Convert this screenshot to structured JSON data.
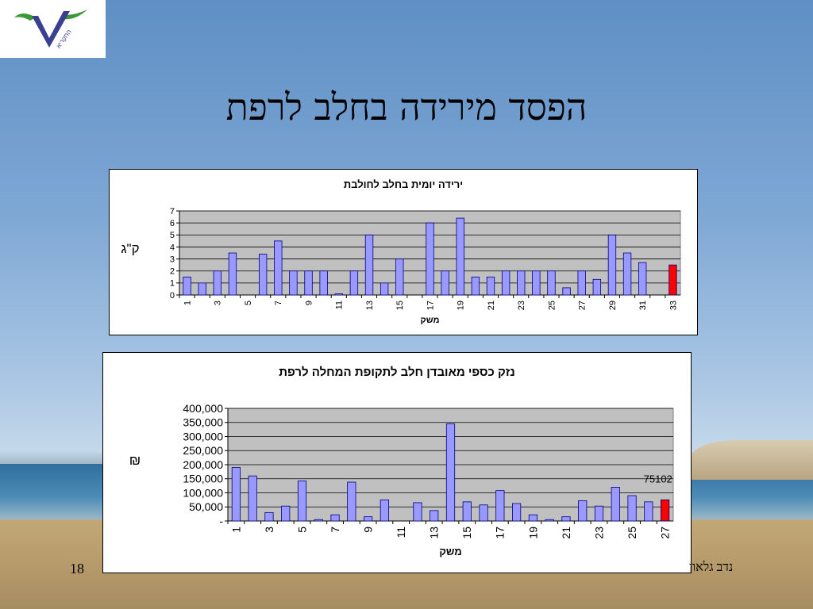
{
  "slide": {
    "title": "הפסד מירידה בחלב לרפת",
    "page_number": "18",
    "author": "נדב גלאון"
  },
  "logo": {
    "caption": "התקריא"
  },
  "colors": {
    "bar": "#9999ff",
    "highlight": "#ff0000",
    "plot_bg": "#c0c0c0"
  },
  "chart_data": [
    {
      "type": "bar",
      "title": "ירידה יומית בחלב לחולבת",
      "xlabel": "משק",
      "ylabel": "ק\"ג",
      "ylim": [
        0,
        7
      ],
      "yticks": [
        "0",
        "1",
        "2",
        "3",
        "4",
        "5",
        "6",
        "7"
      ],
      "categories": [
        "1",
        "2",
        "3",
        "4",
        "5",
        "6",
        "7",
        "8",
        "9",
        "10",
        "11",
        "12",
        "13",
        "14",
        "15",
        "16",
        "17",
        "18",
        "19",
        "20",
        "21",
        "22",
        "23",
        "24",
        "25",
        "26",
        "27",
        "28",
        "29",
        "30",
        "31",
        "32",
        "33"
      ],
      "xtick_labels": [
        "1",
        "3",
        "5",
        "7",
        "9",
        "11",
        "13",
        "15",
        "17",
        "19",
        "21",
        "23",
        "25",
        "27",
        "29",
        "31",
        "33"
      ],
      "values": [
        1.5,
        1,
        2,
        3.5,
        null,
        3.4,
        4.5,
        2,
        2,
        2,
        0.1,
        2,
        5,
        1,
        3,
        null,
        6,
        2,
        6.4,
        1.5,
        1.5,
        2,
        2,
        2,
        2,
        0.6,
        2,
        1.3,
        5,
        3.5,
        2.7,
        null,
        2.5
      ],
      "highlight_index": 32,
      "grid": true
    },
    {
      "type": "bar",
      "title": "נזק כספי מאובדן חלב לתקופת המחלה לרפת",
      "xlabel": "משק",
      "ylabel": "₪",
      "ylim": [
        0,
        400000
      ],
      "yticks": [
        "-",
        "50,000",
        "100,000",
        "150,000",
        "200,000",
        "250,000",
        "300,000",
        "350,000",
        "400,000"
      ],
      "categories": [
        "1",
        "2",
        "3",
        "4",
        "5",
        "6",
        "7",
        "8",
        "9",
        "10",
        "11",
        "12",
        "13",
        "14",
        "15",
        "16",
        "17",
        "18",
        "19",
        "20",
        "21",
        "22",
        "23",
        "24",
        "25",
        "26",
        "27"
      ],
      "xtick_labels": [
        "1",
        "3",
        "5",
        "7",
        "9",
        "11",
        "13",
        "15",
        "17",
        "19",
        "21",
        "23",
        "25",
        "27"
      ],
      "values": [
        190000,
        160000,
        30000,
        53000,
        142000,
        5000,
        22000,
        138000,
        15000,
        75000,
        null,
        65000,
        37000,
        345000,
        68000,
        57000,
        108000,
        62000,
        22000,
        5000,
        15000,
        72000,
        53000,
        120000,
        90000,
        68000,
        75102
      ],
      "highlight_index": 26,
      "annotation": "75102",
      "grid": true
    }
  ]
}
